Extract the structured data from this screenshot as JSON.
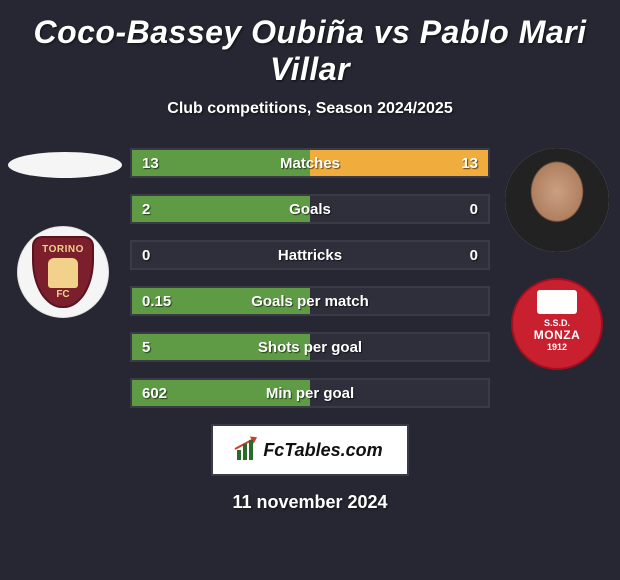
{
  "title": "Coco-Bassey Oubiña vs Pablo Mari Villar",
  "subtitle": "Club competitions, Season 2024/2025",
  "date": "11 november 2024",
  "brand": "FcTables.com",
  "colors": {
    "left_fill": "#5e9b44",
    "right_fill": "#f0ad3e",
    "bar_bg": "#2e2f3a",
    "page_bg": "#262732"
  },
  "left": {
    "player_name": "Coco-Bassey Oubiña",
    "club": "Torino",
    "club_abbrev_top": "TORINO",
    "club_abbrev_bottom": "FC"
  },
  "right": {
    "player_name": "Pablo Mari Villar",
    "club": "Monza",
    "monza_ssd": "S.S.D.",
    "monza_name": "MONZA",
    "monza_year": "1912"
  },
  "stats": [
    {
      "label": "Matches",
      "left_value": "13",
      "right_value": "13",
      "left_pct": 50,
      "right_pct": 50
    },
    {
      "label": "Goals",
      "left_value": "2",
      "right_value": "0",
      "left_pct": 50,
      "right_pct": 0
    },
    {
      "label": "Hattricks",
      "left_value": "0",
      "right_value": "0",
      "left_pct": 0,
      "right_pct": 0
    },
    {
      "label": "Goals per match",
      "left_value": "0.15",
      "right_value": "",
      "left_pct": 50,
      "right_pct": 0
    },
    {
      "label": "Shots per goal",
      "left_value": "5",
      "right_value": "",
      "left_pct": 50,
      "right_pct": 0
    },
    {
      "label": "Min per goal",
      "left_value": "602",
      "right_value": "",
      "left_pct": 50,
      "right_pct": 0
    }
  ]
}
